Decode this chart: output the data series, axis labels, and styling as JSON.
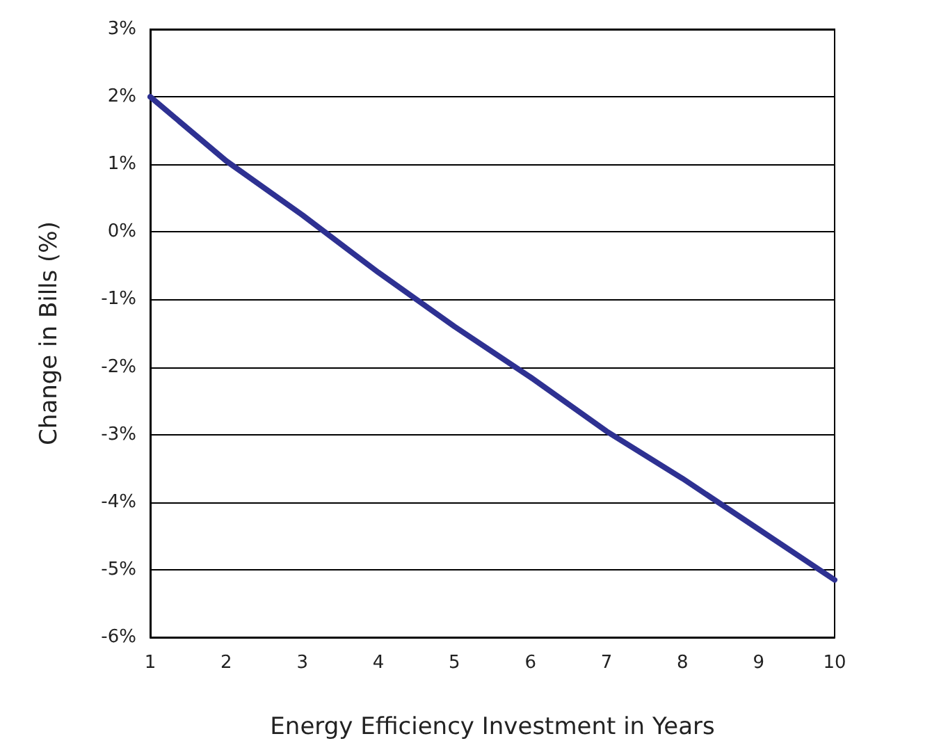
{
  "chart_data": {
    "type": "line",
    "xlabel": "Energy Efficiency Investment in Years",
    "ylabel": "Change in Bills (%)",
    "x": [
      1,
      2,
      3,
      4,
      5,
      6,
      7,
      8,
      9,
      10
    ],
    "series": [
      {
        "color": "#2e3192",
        "values": [
          2.0,
          1.05,
          0.25,
          -0.6,
          -1.4,
          -2.15,
          -2.95,
          -3.65,
          -4.4,
          -5.15
        ]
      }
    ],
    "xlim": [
      1,
      10
    ],
    "xticks": [
      1,
      2,
      3,
      4,
      5,
      6,
      7,
      8,
      9,
      10
    ],
    "ylim": [
      -6,
      3
    ],
    "yticks": [
      {
        "value": -6,
        "label": "-6%"
      },
      {
        "value": -5,
        "label": "-5%"
      },
      {
        "value": -4,
        "label": "-4%"
      },
      {
        "value": -3,
        "label": "-3%"
      },
      {
        "value": -2,
        "label": "-2%"
      },
      {
        "value": -1,
        "label": "-1%"
      },
      {
        "value": 0,
        "label": "0%"
      },
      {
        "value": 1,
        "label": "1%"
      },
      {
        "value": 2,
        "label": "2%"
      },
      {
        "value": 3,
        "label": "3%"
      }
    ],
    "grid": "y",
    "marker": "none",
    "line_style": "solid"
  }
}
